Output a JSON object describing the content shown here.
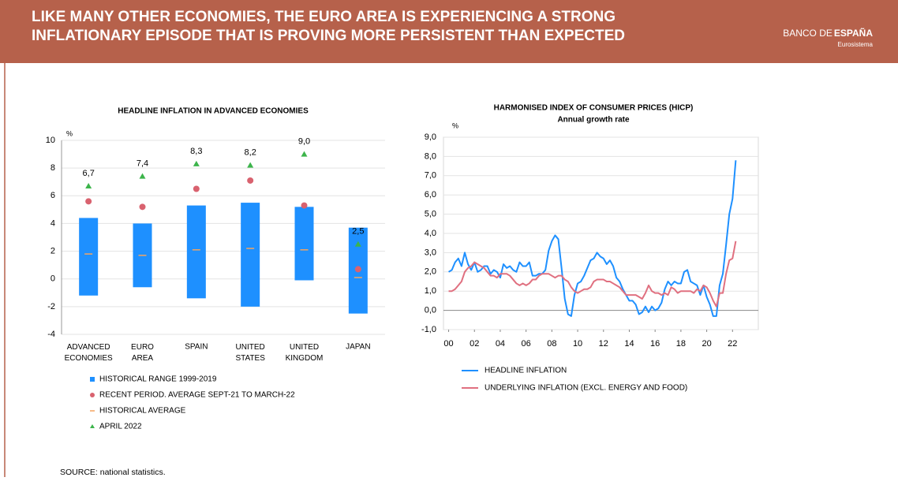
{
  "header": {
    "title": [
      "LIKE MANY OTHER ECONOMIES, THE EURO AREA IS EXPERIENCING A STRONG",
      "INFLATIONARY EPISODE THAT IS PROVING MORE PERSISTENT THAN EXPECTED"
    ],
    "logo_light": "BANCO DE",
    "logo_bold": "ESPAÑA",
    "logo_sub": "Eurosistema"
  },
  "footer": {
    "source": "SOURCE: national statistics."
  },
  "chart_data": [
    {
      "type": "range",
      "title": "HEADLINE INFLATION IN ADVANCED ECONOMIES",
      "y_unit": "%",
      "categories": [
        "ADVANCED ECONOMIES",
        "EURO AREA",
        "SPAIN",
        "UNITED STATES",
        "UNITED KINGDOM",
        "JAPAN"
      ],
      "ylim": [
        -4,
        10
      ],
      "yticks": [
        -4,
        -2,
        0,
        2,
        4,
        6,
        8,
        10
      ],
      "grid": true,
      "series": [
        {
          "name": "HISTORICAL RANGE 1999-2019",
          "color": "#1e90ff",
          "marker": "bar",
          "values": [
            [
              -1.2,
              4.4
            ],
            [
              -0.6,
              4.0
            ],
            [
              -1.4,
              5.3
            ],
            [
              -2.0,
              5.5
            ],
            [
              -0.1,
              5.2
            ],
            [
              -2.5,
              3.7
            ]
          ]
        },
        {
          "name": "RECENT PERIOD. AVERAGE SEPT-21 TO MARCH-22",
          "color": "#d9626f",
          "marker": "circle",
          "values": [
            5.6,
            5.2,
            6.5,
            7.1,
            5.3,
            0.7
          ]
        },
        {
          "name": "HISTORICAL AVERAGE",
          "color": "#f4a460",
          "marker": "dash",
          "values": [
            1.8,
            1.7,
            2.1,
            2.2,
            2.1,
            0.1
          ]
        },
        {
          "name": "APRIL 2022",
          "color": "#3cb44b",
          "marker": "triangle",
          "values": [
            6.7,
            7.4,
            8.3,
            8.2,
            9.0,
            2.5
          ],
          "value_labels": [
            "6,7",
            "7,4",
            "8,3",
            "8,2",
            "9,0",
            "2,5"
          ]
        }
      ]
    },
    {
      "type": "line",
      "title": "HARMONISED INDEX OF CONSUMER PRICES (HICP)",
      "subtitle": "Annual growth rate",
      "y_unit": "%",
      "xlim": [
        1999.6,
        2024
      ],
      "xticks": [
        {
          "value": 2000,
          "label": "00"
        },
        {
          "value": 2002,
          "label": "02"
        },
        {
          "value": 2004,
          "label": "04"
        },
        {
          "value": 2006,
          "label": "06"
        },
        {
          "value": 2008,
          "label": "08"
        },
        {
          "value": 2010,
          "label": "10"
        },
        {
          "value": 2012,
          "label": "12"
        },
        {
          "value": 2014,
          "label": "14"
        },
        {
          "value": 2016,
          "label": "16"
        },
        {
          "value": 2018,
          "label": "18"
        },
        {
          "value": 2020,
          "label": "20"
        },
        {
          "value": 2022,
          "label": "22"
        }
      ],
      "ylim": [
        -1,
        9
      ],
      "yticks": [
        {
          "value": -1,
          "label": "-1,0"
        },
        {
          "value": 0,
          "label": "0,0"
        },
        {
          "value": 1,
          "label": "1,0"
        },
        {
          "value": 2,
          "label": "2,0"
        },
        {
          "value": 3,
          "label": "3,0"
        },
        {
          "value": 4,
          "label": "4,0"
        },
        {
          "value": 5,
          "label": "5,0"
        },
        {
          "value": 6,
          "label": "6,0"
        },
        {
          "value": 7,
          "label": "7,0"
        },
        {
          "value": 8,
          "label": "8,0"
        },
        {
          "value": 9,
          "label": "9,0"
        }
      ],
      "grid": true,
      "x": [
        2000,
        2000.25,
        2000.5,
        2000.75,
        2001,
        2001.25,
        2001.5,
        2001.75,
        2002,
        2002.25,
        2002.5,
        2002.75,
        2003,
        2003.25,
        2003.5,
        2003.75,
        2004,
        2004.25,
        2004.5,
        2004.75,
        2005,
        2005.25,
        2005.5,
        2005.75,
        2006,
        2006.25,
        2006.5,
        2006.75,
        2007,
        2007.25,
        2007.5,
        2007.75,
        2008,
        2008.25,
        2008.5,
        2008.75,
        2009,
        2009.25,
        2009.5,
        2009.75,
        2010,
        2010.25,
        2010.5,
        2010.75,
        2011,
        2011.25,
        2011.5,
        2011.75,
        2012,
        2012.25,
        2012.5,
        2012.75,
        2013,
        2013.25,
        2013.5,
        2013.75,
        2014,
        2014.25,
        2014.5,
        2014.75,
        2015,
        2015.25,
        2015.5,
        2015.75,
        2016,
        2016.25,
        2016.5,
        2016.75,
        2017,
        2017.25,
        2017.5,
        2017.75,
        2018,
        2018.25,
        2018.5,
        2018.75,
        2019,
        2019.25,
        2019.5,
        2019.75,
        2020,
        2020.25,
        2020.5,
        2020.75,
        2021,
        2021.25,
        2021.5,
        2021.75,
        2022,
        2022.25
      ],
      "series": [
        {
          "name": "HEADLINE INFLATION",
          "color": "#1e90ff",
          "values": [
            2.0,
            2.1,
            2.5,
            2.7,
            2.3,
            3.0,
            2.4,
            2.1,
            2.5,
            2.0,
            2.1,
            2.3,
            2.3,
            1.9,
            2.1,
            2.0,
            1.7,
            2.4,
            2.2,
            2.3,
            2.1,
            2.0,
            2.5,
            2.3,
            2.3,
            2.5,
            1.8,
            1.8,
            1.9,
            1.9,
            2.1,
            3.1,
            3.6,
            3.9,
            3.7,
            2.2,
            0.6,
            -0.2,
            -0.3,
            0.8,
            1.4,
            1.5,
            1.8,
            2.2,
            2.6,
            2.7,
            3.0,
            2.8,
            2.7,
            2.4,
            2.6,
            2.3,
            1.7,
            1.5,
            1.1,
            0.8,
            0.5,
            0.5,
            0.3,
            -0.2,
            -0.1,
            0.2,
            -0.1,
            0.2,
            0.0,
            0.1,
            0.4,
            1.1,
            1.5,
            1.3,
            1.5,
            1.4,
            1.4,
            2.0,
            2.1,
            1.5,
            1.4,
            1.3,
            0.8,
            1.3,
            0.7,
            0.3,
            -0.3,
            -0.3,
            1.3,
            1.9,
            3.4,
            5.0,
            5.8,
            7.8
          ]
        },
        {
          "name": "UNDERLYING INFLATION (EXCL. ENERGY AND FOOD)",
          "color": "#e07080",
          "values": [
            1.0,
            1.0,
            1.1,
            1.3,
            1.5,
            2.0,
            2.2,
            2.3,
            2.5,
            2.4,
            2.3,
            2.2,
            2.0,
            1.8,
            1.8,
            1.7,
            1.9,
            1.9,
            1.9,
            1.8,
            1.6,
            1.4,
            1.3,
            1.4,
            1.3,
            1.4,
            1.6,
            1.6,
            1.8,
            1.9,
            1.9,
            1.9,
            1.8,
            1.7,
            1.8,
            1.8,
            1.6,
            1.5,
            1.2,
            1.0,
            0.9,
            1.0,
            1.1,
            1.1,
            1.2,
            1.5,
            1.6,
            1.6,
            1.6,
            1.5,
            1.5,
            1.4,
            1.3,
            1.2,
            1.0,
            0.8,
            0.8,
            0.8,
            0.8,
            0.7,
            0.6,
            0.9,
            1.3,
            1.0,
            0.9,
            0.9,
            0.8,
            0.9,
            0.8,
            1.2,
            1.1,
            0.9,
            1.0,
            1.0,
            1.0,
            1.0,
            0.9,
            1.1,
            1.0,
            1.3,
            1.2,
            0.9,
            0.5,
            0.2,
            0.9,
            0.9,
            1.9,
            2.6,
            2.7,
            3.6
          ]
        }
      ]
    }
  ]
}
